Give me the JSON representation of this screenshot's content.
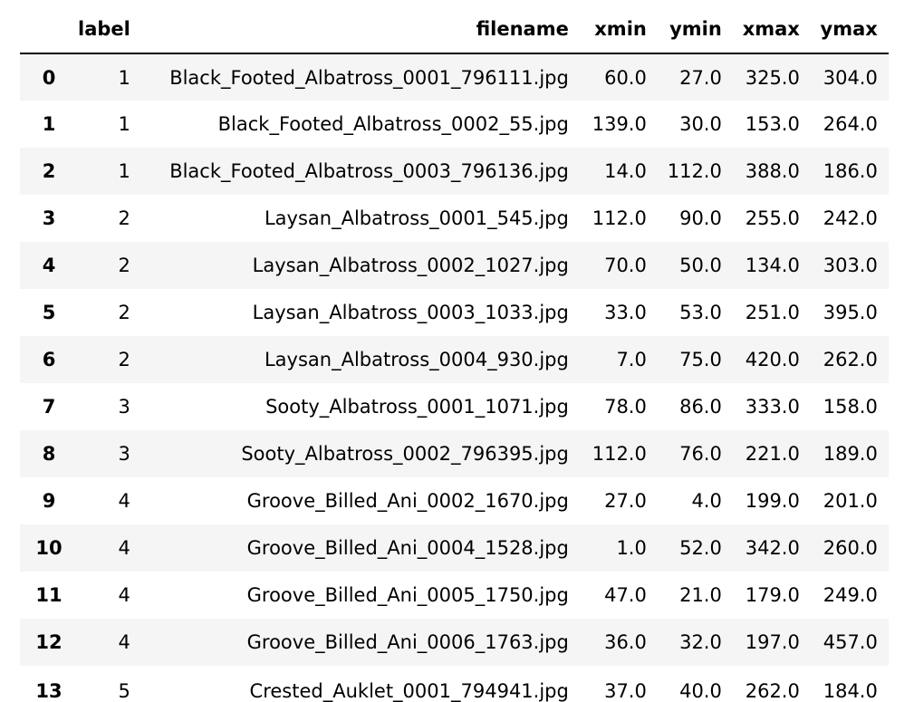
{
  "table": {
    "columns": [
      "",
      "label",
      "filename",
      "xmin",
      "ymin",
      "xmax",
      "ymax"
    ],
    "rows": [
      {
        "index": "0",
        "label": "1",
        "filename": "Black_Footed_Albatross_0001_796111.jpg",
        "xmin": "60.0",
        "ymin": "27.0",
        "xmax": "325.0",
        "ymax": "304.0"
      },
      {
        "index": "1",
        "label": "1",
        "filename": "Black_Footed_Albatross_0002_55.jpg",
        "xmin": "139.0",
        "ymin": "30.0",
        "xmax": "153.0",
        "ymax": "264.0"
      },
      {
        "index": "2",
        "label": "1",
        "filename": "Black_Footed_Albatross_0003_796136.jpg",
        "xmin": "14.0",
        "ymin": "112.0",
        "xmax": "388.0",
        "ymax": "186.0"
      },
      {
        "index": "3",
        "label": "2",
        "filename": "Laysan_Albatross_0001_545.jpg",
        "xmin": "112.0",
        "ymin": "90.0",
        "xmax": "255.0",
        "ymax": "242.0"
      },
      {
        "index": "4",
        "label": "2",
        "filename": "Laysan_Albatross_0002_1027.jpg",
        "xmin": "70.0",
        "ymin": "50.0",
        "xmax": "134.0",
        "ymax": "303.0"
      },
      {
        "index": "5",
        "label": "2",
        "filename": "Laysan_Albatross_0003_1033.jpg",
        "xmin": "33.0",
        "ymin": "53.0",
        "xmax": "251.0",
        "ymax": "395.0"
      },
      {
        "index": "6",
        "label": "2",
        "filename": "Laysan_Albatross_0004_930.jpg",
        "xmin": "7.0",
        "ymin": "75.0",
        "xmax": "420.0",
        "ymax": "262.0"
      },
      {
        "index": "7",
        "label": "3",
        "filename": "Sooty_Albatross_0001_1071.jpg",
        "xmin": "78.0",
        "ymin": "86.0",
        "xmax": "333.0",
        "ymax": "158.0"
      },
      {
        "index": "8",
        "label": "3",
        "filename": "Sooty_Albatross_0002_796395.jpg",
        "xmin": "112.0",
        "ymin": "76.0",
        "xmax": "221.0",
        "ymax": "189.0"
      },
      {
        "index": "9",
        "label": "4",
        "filename": "Groove_Billed_Ani_0002_1670.jpg",
        "xmin": "27.0",
        "ymin": "4.0",
        "xmax": "199.0",
        "ymax": "201.0"
      },
      {
        "index": "10",
        "label": "4",
        "filename": "Groove_Billed_Ani_0004_1528.jpg",
        "xmin": "1.0",
        "ymin": "52.0",
        "xmax": "342.0",
        "ymax": "260.0"
      },
      {
        "index": "11",
        "label": "4",
        "filename": "Groove_Billed_Ani_0005_1750.jpg",
        "xmin": "47.0",
        "ymin": "21.0",
        "xmax": "179.0",
        "ymax": "249.0"
      },
      {
        "index": "12",
        "label": "4",
        "filename": "Groove_Billed_Ani_0006_1763.jpg",
        "xmin": "36.0",
        "ymin": "32.0",
        "xmax": "197.0",
        "ymax": "457.0"
      },
      {
        "index": "13",
        "label": "5",
        "filename": "Crested_Auklet_0001_794941.jpg",
        "xmin": "37.0",
        "ymin": "40.0",
        "xmax": "262.0",
        "ymax": "184.0"
      }
    ]
  }
}
